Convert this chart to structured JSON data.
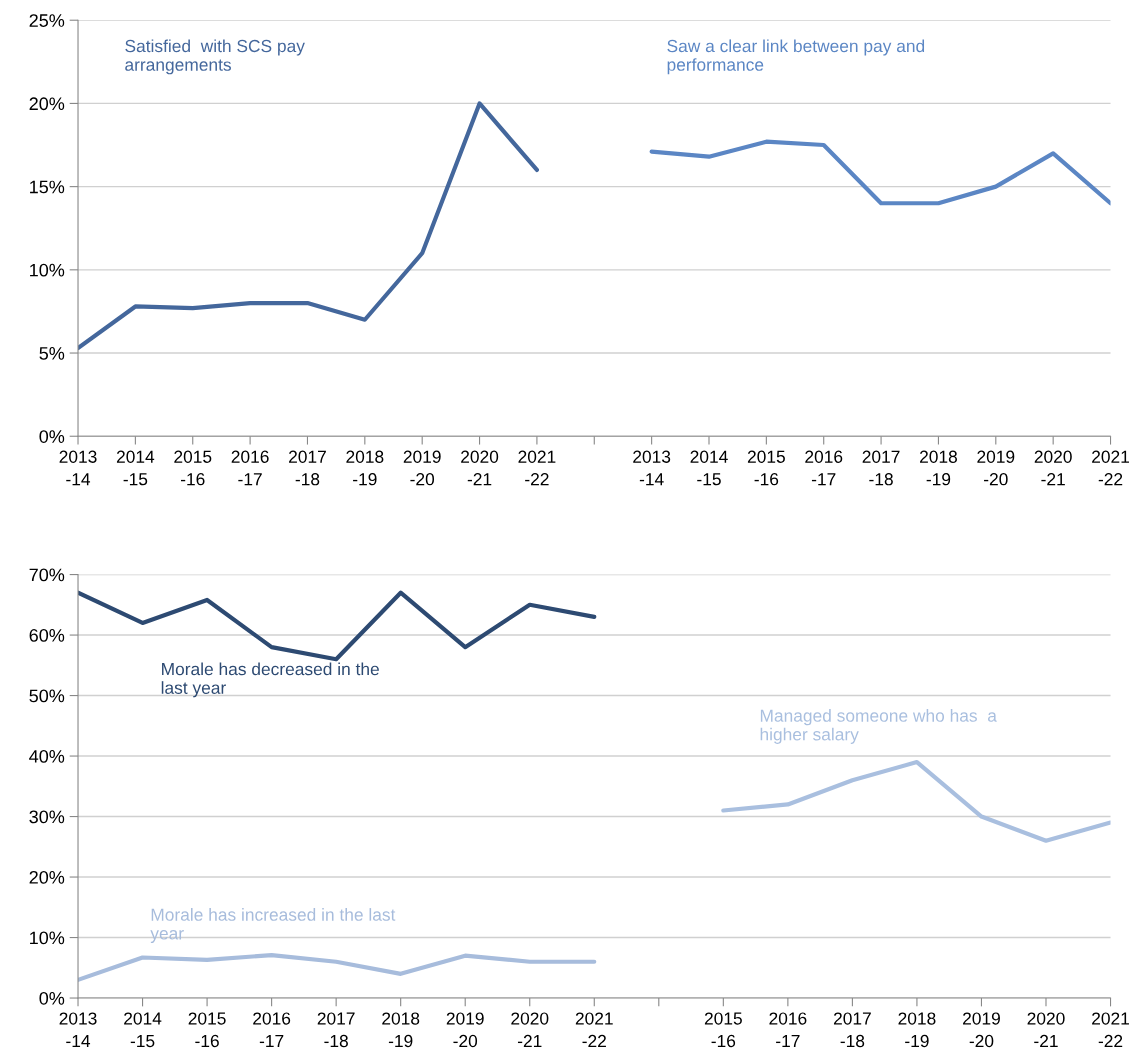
{
  "chart_data": [
    {
      "type": "line",
      "categories": [
        "2013\n-14",
        "2014\n-15",
        "2015\n-16",
        "2016\n-17",
        "2017\n-18",
        "2018\n-19",
        "2019\n-20",
        "2020\n-21",
        "2021\n-22",
        null,
        "2013\n-14",
        "2014\n-15",
        "2015\n-16",
        "2016\n-17",
        "2017\n-18",
        "2018\n-19",
        "2019\n-20",
        "2020\n-21",
        "2021\n-22"
      ],
      "series": [
        {
          "name": "Satisfied  with SCS pay\narrangements",
          "color": "#44679c",
          "values": [
            5.3,
            7.8,
            7.7,
            8.0,
            8.0,
            7.0,
            11.0,
            20.0,
            16.0,
            null,
            null,
            null,
            null,
            null,
            null,
            null,
            null,
            null,
            null
          ]
        },
        {
          "name": "Saw a clear link between pay and\nperformance",
          "color": "#5b86c4",
          "values": [
            null,
            null,
            null,
            null,
            null,
            null,
            null,
            null,
            null,
            null,
            17.1,
            16.8,
            17.7,
            17.5,
            14,
            14,
            15,
            17,
            14
          ]
        }
      ],
      "ylim": [
        0,
        25
      ],
      "yticks": [
        {
          "value": 0,
          "label": "0%"
        },
        {
          "value": 5,
          "label": "5%"
        },
        {
          "value": 10,
          "label": "10%"
        },
        {
          "value": 15,
          "label": "15%"
        },
        {
          "value": 20,
          "label": "20%"
        },
        {
          "value": 25,
          "label": "25%"
        }
      ],
      "grid": "y",
      "marker": "none",
      "line_style": "solid"
    },
    {
      "type": "line",
      "categories": [
        "2013\n-14",
        "2014\n-15",
        "2015\n-16",
        "2016\n-17",
        "2017\n-18",
        "2018\n-19",
        "2019\n-20",
        "2020\n-21",
        "2021\n-22",
        null,
        "2015\n-16",
        "2016\n-17",
        "2017\n-18",
        "2018\n-19",
        "2019\n-20",
        "2020\n-21",
        "2021\n-22"
      ],
      "series": [
        {
          "name": "Morale has decreased in the\nlast year",
          "color": "#2d4a72",
          "values": [
            67,
            62,
            65.8,
            58,
            56,
            67,
            58,
            65,
            63,
            null,
            null,
            null,
            null,
            null,
            null,
            null,
            null
          ]
        },
        {
          "name": "Managed someone who has  a\nhigher salary",
          "color": "#a9bfdf",
          "values": [
            null,
            null,
            null,
            null,
            null,
            null,
            null,
            null,
            null,
            null,
            31,
            32,
            36,
            39,
            30,
            26,
            29
          ]
        },
        {
          "name": "Morale has increased in the last\nyear",
          "color": "#a7bcdc",
          "values": [
            3,
            6.7,
            6.3,
            7.1,
            6,
            4,
            7,
            6,
            6,
            null,
            null,
            null,
            null,
            null,
            null,
            null,
            null
          ]
        }
      ],
      "ylim": [
        0,
        70
      ],
      "yticks": [
        {
          "value": 0,
          "label": "0%"
        },
        {
          "value": 10,
          "label": "10%"
        },
        {
          "value": 20,
          "label": "20%"
        },
        {
          "value": 30,
          "label": "30%"
        },
        {
          "value": 40,
          "label": "40%"
        },
        {
          "value": 50,
          "label": "50%"
        },
        {
          "value": 60,
          "label": "60%"
        },
        {
          "value": 70,
          "label": "70%"
        }
      ],
      "grid": "y",
      "marker": "none",
      "line_style": "solid"
    }
  ]
}
